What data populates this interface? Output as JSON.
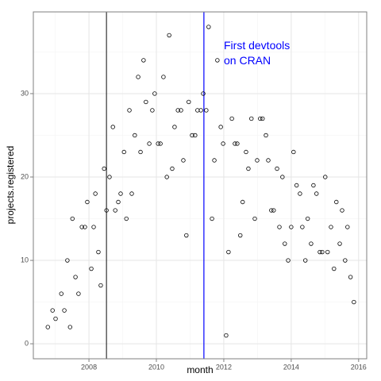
{
  "chart_data": {
    "type": "scatter",
    "xlabel": "month",
    "ylabel": "projects.registered",
    "annotation": [
      "First devtools",
      "on CRAN"
    ],
    "annotation_color": "#0000ff",
    "x": [
      2006.78,
      2006.92,
      2007.01,
      2007.18,
      2007.27,
      2007.36,
      2007.44,
      2007.51,
      2007.6,
      2007.69,
      2007.79,
      2007.88,
      2007.95,
      2008.07,
      2008.14,
      2008.19,
      2008.28,
      2008.35,
      2008.45,
      2008.52,
      2008.61,
      2008.71,
      2008.78,
      2008.87,
      2008.94,
      2009.04,
      2009.11,
      2009.2,
      2009.27,
      2009.36,
      2009.46,
      2009.53,
      2009.62,
      2009.69,
      2009.79,
      2009.88,
      2009.95,
      2010.05,
      2010.12,
      2010.21,
      2010.31,
      2010.38,
      2010.47,
      2010.54,
      2010.64,
      2010.73,
      2010.8,
      2010.89,
      2010.96,
      2011.06,
      2011.15,
      2011.22,
      2011.32,
      2011.39,
      2011.48,
      2011.55,
      2011.65,
      2011.72,
      2011.81,
      2011.91,
      2011.98,
      2012.07,
      2012.14,
      2012.24,
      2012.33,
      2012.4,
      2012.49,
      2012.56,
      2012.66,
      2012.73,
      2012.82,
      2012.92,
      2012.99,
      2013.08,
      2013.15,
      2013.25,
      2013.32,
      2013.41,
      2013.48,
      2013.58,
      2013.65,
      2013.74,
      2013.81,
      2013.91,
      2014.0,
      2014.07,
      2014.16,
      2014.26,
      2014.33,
      2014.42,
      2014.49,
      2014.59,
      2014.66,
      2014.75,
      2014.85,
      2014.92,
      2015.01,
      2015.08,
      2015.18,
      2015.27,
      2015.34,
      2015.44,
      2015.51,
      2015.6,
      2015.67,
      2015.76,
      2015.86
    ],
    "values": [
      2,
      4,
      3,
      6,
      4,
      10,
      2,
      15,
      8,
      6,
      14,
      14,
      17,
      9,
      14,
      18,
      11,
      7,
      21,
      16,
      20,
      26,
      16,
      17,
      18,
      23,
      15,
      28,
      18,
      25,
      32,
      23,
      34,
      29,
      24,
      28,
      30,
      24,
      24,
      32,
      20,
      37,
      21,
      26,
      28,
      28,
      22,
      13,
      29,
      25,
      25,
      28,
      28,
      30,
      28,
      38,
      15,
      22,
      34,
      26,
      24,
      1,
      11,
      27,
      24,
      24,
      13,
      17,
      23,
      21,
      27,
      15,
      22,
      27,
      27,
      25,
      22,
      16,
      16,
      21,
      14,
      20,
      12,
      10,
      14,
      23,
      19,
      18,
      14,
      10,
      15,
      12,
      19,
      18,
      11,
      11,
      20,
      11,
      14,
      9,
      17,
      12,
      16,
      10,
      14,
      8,
      5
    ],
    "color": "#000000",
    "vlines": [
      {
        "value": 2008.52,
        "color": "#333333"
      },
      {
        "value": 2011.41,
        "color": "#0000ff"
      }
    ],
    "xlim": [
      2006.35,
      2016.24
    ],
    "ylim": [
      -1.8,
      39.8
    ],
    "xticks": [
      2008,
      2010,
      2012,
      2014,
      2016
    ],
    "yticks": [
      0,
      10,
      20,
      30
    ],
    "xminor": [
      2007,
      2009,
      2011,
      2013,
      2015
    ],
    "yminor": [
      5,
      15,
      25,
      35
    ],
    "grid": true
  }
}
